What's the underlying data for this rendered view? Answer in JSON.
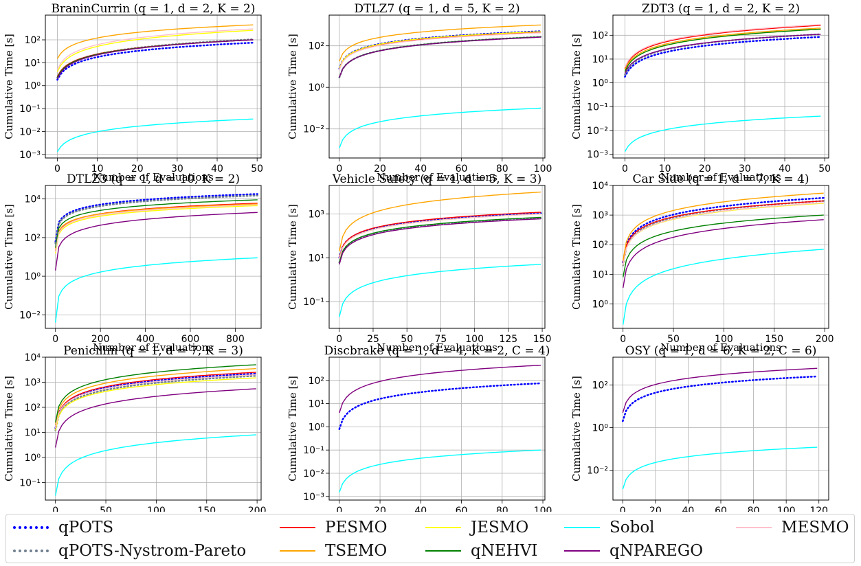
{
  "series_styles": [
    {
      "name": "qPOTS",
      "color": "#0000ff",
      "dash": "dotted"
    },
    {
      "name": "qPOTS-Nystrom-Pareto",
      "color": "#708090",
      "dash": "dotted"
    },
    {
      "name": "PESMO",
      "color": "#ff0000",
      "dash": "solid"
    },
    {
      "name": "TSEMO",
      "color": "#ffa500",
      "dash": "solid"
    },
    {
      "name": "JESMO",
      "color": "#ffff00",
      "dash": "solid"
    },
    {
      "name": "qNEHVI",
      "color": "#008000",
      "dash": "solid"
    },
    {
      "name": "Sobol",
      "color": "#00ffff",
      "dash": "solid"
    },
    {
      "name": "qNPAREGO",
      "color": "#800080",
      "dash": "solid"
    },
    {
      "name": "MESMO",
      "color": "#ffc0cb",
      "dash": "solid"
    }
  ],
  "legend": {
    "placement": "bottom",
    "columns": 5
  },
  "chart_data": [
    {
      "type": "line",
      "title": "BraninCurrin (q = 1, d = 2, K = 2)",
      "xlabel": "Number of Evaluations",
      "ylabel": "Cumulative Time [s]",
      "yscale": "log",
      "grid": true,
      "xlim": [
        -3,
        51
      ],
      "ylim": [
        0.0007,
        1200
      ],
      "xticks": [
        0,
        10,
        20,
        30,
        40,
        50
      ],
      "yticks": [
        0.001,
        0.01,
        0.1,
        1,
        10,
        100
      ],
      "x_end": 49,
      "series": [
        {
          "name": "qPOTS",
          "start": 1.8,
          "end": 75
        },
        {
          "name": "qPOTS-Nystrom-Pareto",
          "start": 2.2,
          "end": 105
        },
        {
          "name": "PESMO",
          "start": 2.5,
          "end": 100
        },
        {
          "name": "TSEMO",
          "start": 15,
          "end": 450
        },
        {
          "name": "JESMO",
          "start": 4,
          "end": 260
        },
        {
          "name": "qNEHVI",
          "start": 2.3,
          "end": 100
        },
        {
          "name": "Sobol",
          "start": 0.0013,
          "end": 0.035
        },
        {
          "name": "qNPAREGO",
          "start": 2.0,
          "end": 100
        },
        {
          "name": "MESMO",
          "start": 5,
          "end": 300
        }
      ]
    },
    {
      "type": "line",
      "title": "DTLZ7 (q = 1, d = 5, K = 2)",
      "xlabel": "Number of Evaluations",
      "ylabel": "Cumulative Time [s]",
      "yscale": "log",
      "grid": true,
      "xlim": [
        -5,
        101
      ],
      "ylim": [
        0.0004,
        3000
      ],
      "xticks": [
        0,
        20,
        40,
        60,
        80,
        100
      ],
      "yticks": [
        0.01,
        1,
        100
      ],
      "x_end": 99,
      "series": [
        {
          "name": "qPOTS",
          "start": 8,
          "end": 500
        },
        {
          "name": "qPOTS-Nystrom-Pareto",
          "start": 3,
          "end": 270
        },
        {
          "name": "PESMO",
          "start": 8,
          "end": 450
        },
        {
          "name": "TSEMO",
          "start": 18,
          "end": 1000
        },
        {
          "name": "JESMO",
          "start": 8,
          "end": 480
        },
        {
          "name": "qNEHVI",
          "start": 3,
          "end": 270
        },
        {
          "name": "Sobol",
          "start": 0.0012,
          "end": 0.1
        },
        {
          "name": "qNPAREGO",
          "start": 3,
          "end": 260
        },
        {
          "name": "MESMO",
          "start": 7,
          "end": 420
        }
      ]
    },
    {
      "type": "line",
      "title": "ZDT3 (q = 1, d = 2, K = 2)",
      "xlabel": "Number of Evaluations",
      "ylabel": "Cumulative Time [s]",
      "yscale": "log",
      "grid": true,
      "xlim": [
        -3,
        51
      ],
      "ylim": [
        0.0007,
        700
      ],
      "xticks": [
        0,
        10,
        20,
        30,
        40,
        50
      ],
      "yticks": [
        0.001,
        0.01,
        0.1,
        1,
        10,
        100
      ],
      "x_end": 49,
      "series": [
        {
          "name": "qPOTS",
          "start": 1.8,
          "end": 85
        },
        {
          "name": "qPOTS-Nystrom-Pareto",
          "start": 2.2,
          "end": 110
        },
        {
          "name": "PESMO",
          "start": 4,
          "end": 260
        },
        {
          "name": "TSEMO",
          "start": 3.5,
          "end": 200
        },
        {
          "name": "JESMO",
          "start": 3,
          "end": 180
        },
        {
          "name": "qNEHVI",
          "start": 3,
          "end": 180
        },
        {
          "name": "Sobol",
          "start": 0.0013,
          "end": 0.04
        },
        {
          "name": "qNPAREGO",
          "start": 2.5,
          "end": 110
        },
        {
          "name": "MESMO",
          "start": 4.5,
          "end": 280
        }
      ]
    },
    {
      "type": "line",
      "title": "DTLZ3 (q = 1, d = 10, K = 2)",
      "xlabel": "Number of Evaluations",
      "ylabel": "Cumulative Time [s]",
      "yscale": "log",
      "grid": true,
      "xlim": [
        -45,
        915
      ],
      "ylim": [
        0.002,
        50000
      ],
      "xticks": [
        0,
        200,
        400,
        600,
        800
      ],
      "yticks": [
        0.01,
        1,
        100,
        10000
      ],
      "x_end": 899,
      "series": [
        {
          "name": "qPOTS",
          "start": 60,
          "end": 18000
        },
        {
          "name": "qPOTS-Nystrom-Pareto",
          "start": 50,
          "end": 15000
        },
        {
          "name": "PESMO",
          "start": 20,
          "end": 6000
        },
        {
          "name": "TSEMO",
          "start": 25,
          "end": 5500
        },
        {
          "name": "JESMO",
          "start": 15,
          "end": 4500
        },
        {
          "name": "qNEHVI",
          "start": 30,
          "end": 9000
        },
        {
          "name": "Sobol",
          "start": 0.004,
          "end": 9
        },
        {
          "name": "qNPAREGO",
          "start": 2,
          "end": 2000
        },
        {
          "name": "MESMO",
          "start": 18,
          "end": 5000
        }
      ]
    },
    {
      "type": "line",
      "title": "Vehicle Safety (q = 1, d = 5, K = 3)",
      "xlabel": "Number of Evaluations",
      "ylabel": "Cumulative Time [s]",
      "yscale": "log",
      "grid": true,
      "xlim": [
        -7.5,
        152
      ],
      "ylim": [
        0.006,
        20000
      ],
      "xticks": [
        0,
        25,
        50,
        75,
        100,
        125,
        150
      ],
      "yticks": [
        0.1,
        10,
        1000
      ],
      "x_end": 149,
      "series": [
        {
          "name": "qPOTS",
          "start": 10,
          "end": 1100
        },
        {
          "name": "qPOTS-Nystrom-Pareto",
          "start": 6,
          "end": 650
        },
        {
          "name": "PESMO",
          "start": 10,
          "end": 1200
        },
        {
          "name": "TSEMO",
          "start": 20,
          "end": 10000
        },
        {
          "name": "JESMO",
          "start": 9,
          "end": 1000
        },
        {
          "name": "qNEHVI",
          "start": 6,
          "end": 700
        },
        {
          "name": "Sobol",
          "start": 0.02,
          "end": 5
        },
        {
          "name": "qNPAREGO",
          "start": 5,
          "end": 600
        },
        {
          "name": "MESMO",
          "start": 9,
          "end": 1000
        }
      ]
    },
    {
      "type": "line",
      "title": "Car Side (q = 1, d = 7, K = 4)",
      "xlabel": "Number of Evaluations",
      "ylabel": "Cumulative Time [s]",
      "yscale": "log",
      "grid": true,
      "xlim": [
        -10,
        204
      ],
      "ylim": [
        0.15,
        10000
      ],
      "xticks": [
        0,
        50,
        100,
        150,
        200
      ],
      "yticks": [
        1,
        10,
        100,
        1000,
        10000
      ],
      "x_end": 199,
      "series": [
        {
          "name": "qPOTS",
          "start": 25,
          "end": 3800
        },
        {
          "name": "qPOTS-Nystrom-Pareto",
          "start": 20,
          "end": 3000
        },
        {
          "name": "PESMO",
          "start": 25,
          "end": 3000
        },
        {
          "name": "TSEMO",
          "start": 30,
          "end": 5500
        },
        {
          "name": "JESMO",
          "start": 20,
          "end": 2500
        },
        {
          "name": "qNEHVI",
          "start": 8,
          "end": 1000
        },
        {
          "name": "Sobol",
          "start": 0.2,
          "end": 70
        },
        {
          "name": "qNPAREGO",
          "start": 3.5,
          "end": 700
        },
        {
          "name": "MESMO",
          "start": 20,
          "end": 2600
        }
      ]
    },
    {
      "type": "line",
      "title": "Penicillin (q = 1, d = 7, K = 3)",
      "xlabel": "Number of Evaluations",
      "ylabel": "Cumulative Time [s]",
      "yscale": "log",
      "grid": true,
      "xlim": [
        -10,
        204
      ],
      "ylim": [
        0.02,
        10000
      ],
      "xticks": [
        0,
        50,
        100,
        150,
        200
      ],
      "yticks": [
        0.1,
        1,
        10,
        100,
        1000,
        10000
      ],
      "x_end": 199,
      "series": [
        {
          "name": "qPOTS",
          "start": 15,
          "end": 2200
        },
        {
          "name": "qPOTS-Nystrom-Pareto",
          "start": 12,
          "end": 1800
        },
        {
          "name": "PESMO",
          "start": 15,
          "end": 2500
        },
        {
          "name": "TSEMO",
          "start": 20,
          "end": 3500
        },
        {
          "name": "JESMO",
          "start": 12,
          "end": 1500
        },
        {
          "name": "qNEHVI",
          "start": 25,
          "end": 5000
        },
        {
          "name": "Sobol",
          "start": 0.03,
          "end": 8
        },
        {
          "name": "qNPAREGO",
          "start": 2.5,
          "end": 550
        },
        {
          "name": "MESMO",
          "start": 15,
          "end": 2000
        }
      ]
    },
    {
      "type": "line",
      "title": "Discbrake (q = 1, d = 4, K = 2, C = 4)",
      "xlabel": "Number of Evaluations",
      "ylabel": "Cumulative Time [s]",
      "yscale": "log",
      "grid": true,
      "xlim": [
        -5,
        101
      ],
      "ylim": [
        0.0007,
        1000
      ],
      "xticks": [
        0,
        20,
        40,
        60,
        80,
        100
      ],
      "yticks": [
        0.001,
        0.01,
        0.1,
        1,
        10,
        100
      ],
      "x_end": 99,
      "series": [
        {
          "name": "qPOTS",
          "start": 0.8,
          "end": 75
        },
        {
          "name": "Sobol",
          "start": 0.0015,
          "end": 0.1
        },
        {
          "name": "qNPAREGO",
          "start": 4,
          "end": 450
        }
      ]
    },
    {
      "type": "line",
      "title": "OSY (q = 1, d = 6, K = 2, C = 6)",
      "xlabel": "Number of Evaluations",
      "ylabel": "Cumulative Time [s]",
      "yscale": "log",
      "grid": true,
      "xlim": [
        -6,
        126
      ],
      "ylim": [
        0.0004,
        2000
      ],
      "xticks": [
        0,
        20,
        40,
        60,
        80,
        100,
        120
      ],
      "yticks": [
        0.01,
        1,
        100
      ],
      "x_end": 119,
      "series": [
        {
          "name": "qPOTS",
          "start": 2,
          "end": 250
        },
        {
          "name": "Sobol",
          "start": 0.0013,
          "end": 0.12
        },
        {
          "name": "qNPAREGO",
          "start": 5,
          "end": 600
        }
      ]
    }
  ]
}
